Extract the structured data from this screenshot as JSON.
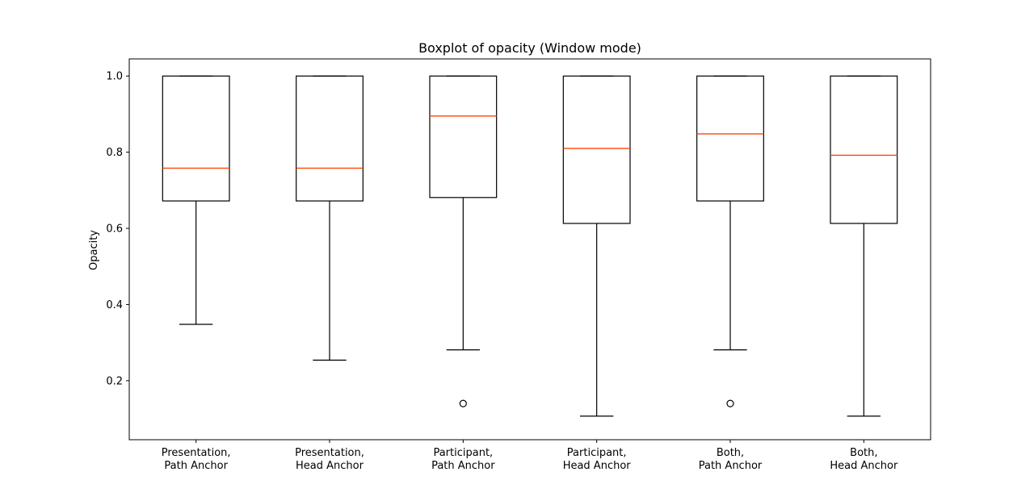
{
  "chart_data": {
    "type": "boxplot",
    "title": "Boxplot of opacity (Window mode)",
    "xlabel": "",
    "ylabel": "Opacity",
    "ylim": [
      0.045,
      1.045
    ],
    "yticks": [
      0.2,
      0.4,
      0.6,
      0.8,
      1.0
    ],
    "ytick_labels": [
      "0.2",
      "0.4",
      "0.6",
      "0.8",
      "1.0"
    ],
    "grid": false,
    "categories": [
      [
        "Presentation,",
        "Path Anchor"
      ],
      [
        "Presentation,",
        "Head Anchor"
      ],
      [
        "Participant,",
        "Path Anchor"
      ],
      [
        "Participant,",
        "Head Anchor"
      ],
      [
        "Both,",
        "Path Anchor"
      ],
      [
        "Both,",
        "Head Anchor"
      ]
    ],
    "boxes": [
      {
        "whisker_low": 0.348,
        "q1": 0.672,
        "median": 0.758,
        "q3": 1.0,
        "whisker_high": 1.0,
        "fliers": []
      },
      {
        "whisker_low": 0.254,
        "q1": 0.672,
        "median": 0.758,
        "q3": 1.0,
        "whisker_high": 1.0,
        "fliers": []
      },
      {
        "whisker_low": 0.281,
        "q1": 0.681,
        "median": 0.895,
        "q3": 1.0,
        "whisker_high": 1.0,
        "fliers": [
          0.14
        ]
      },
      {
        "whisker_low": 0.107,
        "q1": 0.613,
        "median": 0.81,
        "q3": 1.0,
        "whisker_high": 1.0,
        "fliers": []
      },
      {
        "whisker_low": 0.281,
        "q1": 0.672,
        "median": 0.848,
        "q3": 1.0,
        "whisker_high": 1.0,
        "fliers": [
          0.14
        ]
      },
      {
        "whisker_low": 0.107,
        "q1": 0.613,
        "median": 0.792,
        "q3": 1.0,
        "whisker_high": 1.0,
        "fliers": []
      }
    ],
    "colors": {
      "box": "#000000",
      "median": "#ff4500",
      "flier": "#000000"
    }
  }
}
